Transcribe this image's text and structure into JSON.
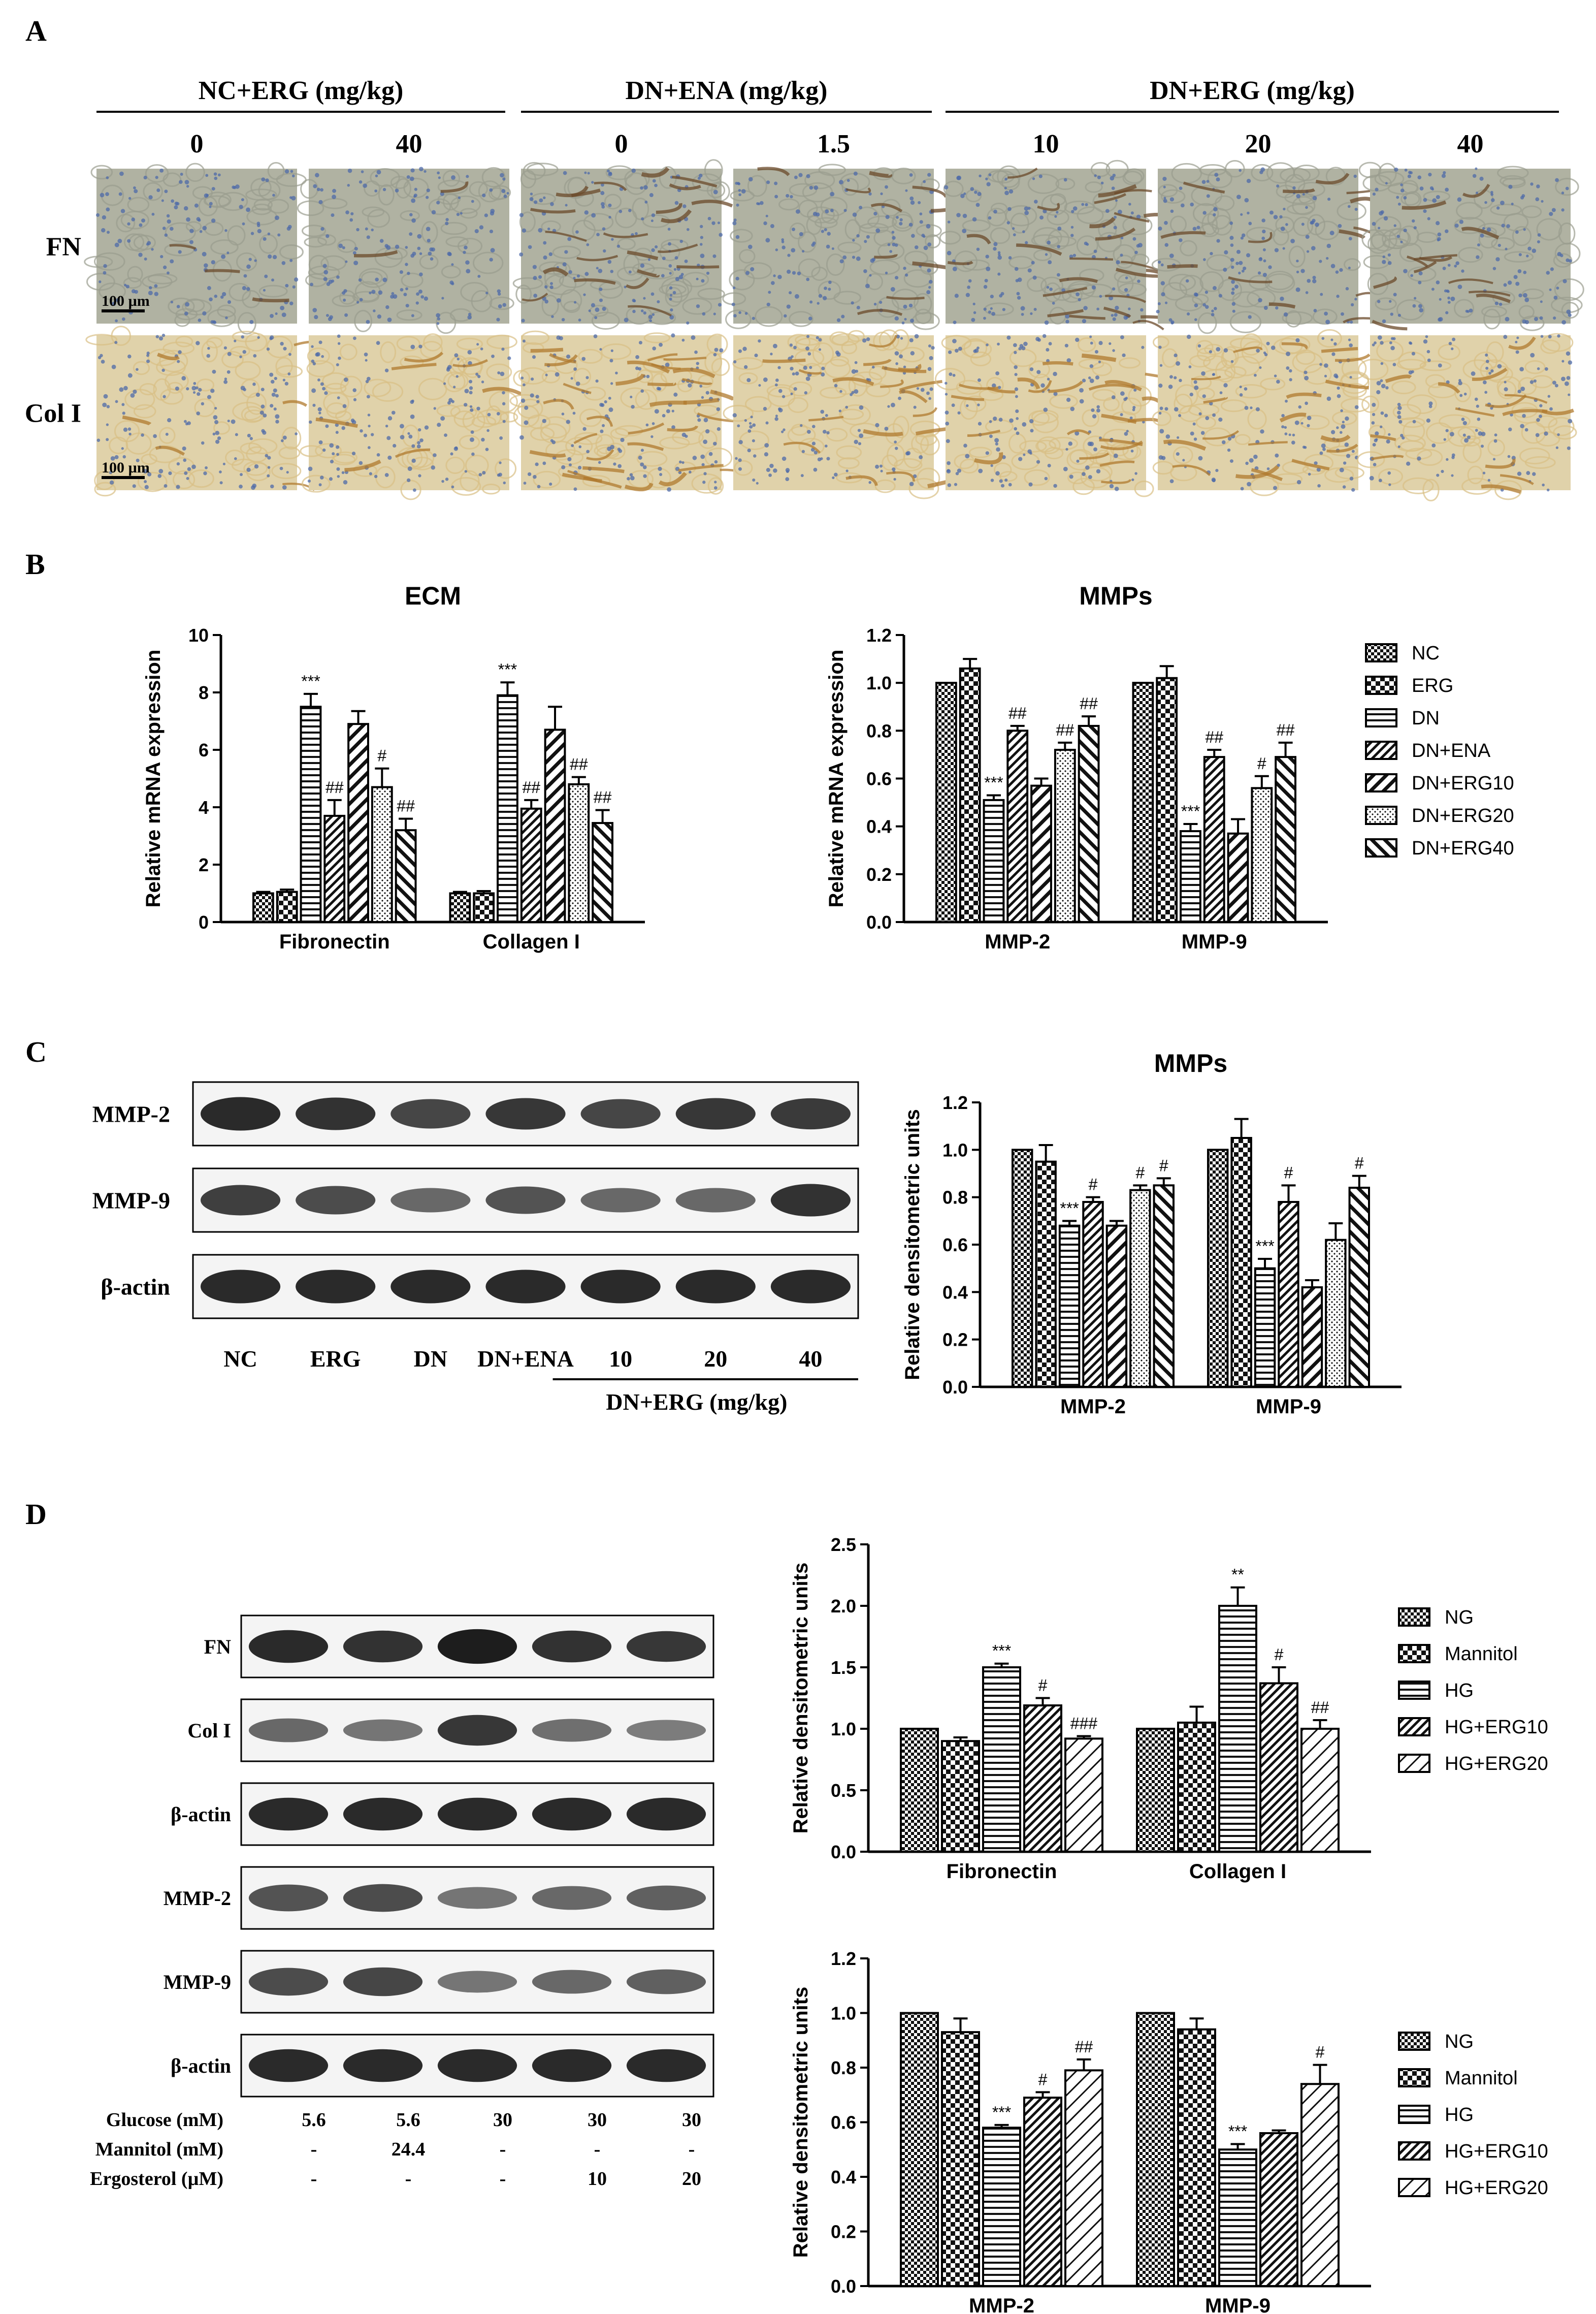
{
  "panels": {
    "A": "A",
    "B": "B",
    "C": "C",
    "D": "D"
  },
  "histology": {
    "groups": [
      {
        "label": "NC+ERG (mg/kg)",
        "doses": [
          "0",
          "40"
        ]
      },
      {
        "label": "DN+ENA (mg/kg)",
        "doses": [
          "0",
          "1.5"
        ]
      },
      {
        "label": "DN+ERG (mg/kg)",
        "doses": [
          "10",
          "20",
          "40"
        ]
      }
    ],
    "rows": [
      "FN",
      "Col I"
    ],
    "scale_bar": "100 µm",
    "stain_intensity": {
      "FN": [
        0.08,
        0.06,
        0.55,
        0.25,
        0.6,
        0.35,
        0.3
      ],
      "Col I": [
        0.15,
        0.18,
        0.8,
        0.45,
        0.55,
        0.45,
        0.35
      ]
    }
  },
  "legends": {
    "in_vivo": [
      "NC",
      "ERG",
      "DN",
      "DN+ENA",
      "DN+ERG10",
      "DN+ERG20",
      "DN+ERG40"
    ],
    "in_vitro": [
      "NG",
      "Mannitol",
      "HG",
      "HG+ERG10",
      "HG+ERG20"
    ]
  },
  "westernC": {
    "bands": [
      "MMP-2",
      "MMP-9",
      "β-actin"
    ],
    "lanes": [
      "NC",
      "ERG",
      "DN",
      "DN+ENA",
      "10",
      "20",
      "40"
    ],
    "group_label": "DN+ERG (mg/kg)",
    "intensity": {
      "MMP-2": [
        0.9,
        0.85,
        0.7,
        0.8,
        0.7,
        0.8,
        0.78
      ],
      "MMP-9": [
        0.75,
        0.65,
        0.45,
        0.6,
        0.45,
        0.45,
        0.85
      ],
      "β-actin": [
        0.9,
        0.9,
        0.9,
        0.9,
        0.9,
        0.9,
        0.9
      ]
    }
  },
  "westernD": {
    "bands": [
      "FN",
      "Col I",
      "β-actin",
      "MMP-2",
      "MMP-9",
      "β-actin"
    ],
    "conditions": [
      {
        "label": "Glucose (mM)",
        "values": [
          "5.6",
          "5.6",
          "30",
          "30",
          "30"
        ]
      },
      {
        "label": "Mannitol (mM)",
        "values": [
          "-",
          "24.4",
          "-",
          "-",
          "-"
        ]
      },
      {
        "label": "Ergosterol (µM)",
        "values": [
          "-",
          "-",
          "-",
          "10",
          "20"
        ]
      }
    ],
    "intensity": [
      [
        0.9,
        0.85,
        1.0,
        0.85,
        0.8
      ],
      [
        0.45,
        0.35,
        0.8,
        0.4,
        0.3
      ],
      [
        0.9,
        0.9,
        0.9,
        0.9,
        0.9
      ],
      [
        0.6,
        0.65,
        0.35,
        0.45,
        0.5
      ],
      [
        0.65,
        0.7,
        0.35,
        0.45,
        0.5
      ],
      [
        0.9,
        0.9,
        0.9,
        0.9,
        0.9
      ]
    ]
  },
  "chart_data": [
    {
      "id": "B-ECM",
      "type": "bar",
      "title": "ECM",
      "xlabel": "",
      "ylabel": "Relative mRNA expression",
      "categories": [
        "Fibronectin",
        "Collagen I"
      ],
      "ylim": [
        0,
        10
      ],
      "yticks": [
        "0",
        "2",
        "4",
        "6",
        "8",
        "10"
      ],
      "values": [
        [
          1.0,
          1.05,
          7.5,
          3.7,
          6.9,
          4.7,
          3.2
        ],
        [
          1.0,
          1.0,
          7.9,
          3.95,
          6.7,
          4.8,
          3.45
        ]
      ],
      "errors": [
        [
          0.05,
          0.08,
          0.45,
          0.55,
          0.45,
          0.65,
          0.4
        ],
        [
          0.05,
          0.08,
          0.45,
          0.3,
          0.8,
          0.25,
          0.45
        ]
      ],
      "annotations": [
        [
          "",
          "",
          "***",
          "##",
          "",
          "#",
          "##"
        ],
        [
          "",
          "",
          "***",
          "##",
          "",
          "##",
          "##"
        ]
      ]
    },
    {
      "id": "B-MMPs",
      "type": "bar",
      "title": "MMPs",
      "xlabel": "",
      "ylabel": "Relative mRNA expression",
      "categories": [
        "MMP-2",
        "MMP-9"
      ],
      "ylim": [
        0,
        1.2
      ],
      "yticks": [
        "0.0",
        "0.2",
        "0.4",
        "0.6",
        "0.8",
        "1.0",
        "1.2"
      ],
      "values": [
        [
          1.0,
          1.06,
          0.51,
          0.8,
          0.57,
          0.72,
          0.82
        ],
        [
          1.0,
          1.02,
          0.38,
          0.69,
          0.37,
          0.56,
          0.69
        ]
      ],
      "errors": [
        [
          0.0,
          0.04,
          0.02,
          0.02,
          0.03,
          0.03,
          0.04
        ],
        [
          0.0,
          0.05,
          0.03,
          0.03,
          0.06,
          0.05,
          0.06
        ]
      ],
      "annotations": [
        [
          "",
          "",
          "***",
          "##",
          "",
          "##",
          "##"
        ],
        [
          "",
          "",
          "***",
          "##",
          "",
          "#",
          "##"
        ]
      ]
    },
    {
      "id": "C-MMPs",
      "type": "bar",
      "title": "MMPs",
      "xlabel": "",
      "ylabel": "Relative densitometric units",
      "categories": [
        "MMP-2",
        "MMP-9"
      ],
      "ylim": [
        0,
        1.2
      ],
      "yticks": [
        "0.0",
        "0.2",
        "0.4",
        "0.6",
        "0.8",
        "1.0",
        "1.2"
      ],
      "values": [
        [
          1.0,
          0.95,
          0.68,
          0.78,
          0.68,
          0.83,
          0.85
        ],
        [
          1.0,
          1.05,
          0.5,
          0.78,
          0.42,
          0.62,
          0.84
        ]
      ],
      "errors": [
        [
          0.0,
          0.07,
          0.02,
          0.02,
          0.02,
          0.02,
          0.03
        ],
        [
          0.0,
          0.08,
          0.04,
          0.07,
          0.03,
          0.07,
          0.05
        ]
      ],
      "annotations": [
        [
          "",
          "",
          "***",
          "#",
          "",
          "#",
          "#"
        ],
        [
          "",
          "",
          "***",
          "#",
          "",
          "",
          "#"
        ]
      ]
    },
    {
      "id": "D-ECM",
      "type": "bar",
      "title": "",
      "xlabel": "",
      "ylabel": "Relative densitometric units",
      "categories": [
        "Fibronectin",
        "Collagen I"
      ],
      "ylim": [
        0,
        2.5
      ],
      "yticks": [
        "0.0",
        "0.5",
        "1.0",
        "1.5",
        "2.0",
        "2.5"
      ],
      "values": [
        [
          1.0,
          0.9,
          1.5,
          1.19,
          0.92
        ],
        [
          1.0,
          1.05,
          2.0,
          1.37,
          1.0
        ]
      ],
      "errors": [
        [
          0.0,
          0.03,
          0.03,
          0.06,
          0.02
        ],
        [
          0.0,
          0.13,
          0.15,
          0.13,
          0.07
        ]
      ],
      "annotations": [
        [
          "",
          "",
          "***",
          "#",
          "###"
        ],
        [
          "",
          "",
          "**",
          "#",
          "##"
        ]
      ]
    },
    {
      "id": "D-MMPs",
      "type": "bar",
      "title": "",
      "xlabel": "",
      "ylabel": "Relative densitometric units",
      "categories": [
        "MMP-2",
        "MMP-9"
      ],
      "ylim": [
        0,
        1.2
      ],
      "yticks": [
        "0.0",
        "0.2",
        "0.4",
        "0.6",
        "0.8",
        "1.0",
        "1.2"
      ],
      "values": [
        [
          1.0,
          0.93,
          0.58,
          0.69,
          0.79
        ],
        [
          1.0,
          0.94,
          0.5,
          0.56,
          0.74
        ]
      ],
      "errors": [
        [
          0.0,
          0.05,
          0.01,
          0.02,
          0.04
        ],
        [
          0.0,
          0.04,
          0.02,
          0.01,
          0.07
        ]
      ],
      "annotations": [
        [
          "",
          "",
          "***",
          "#",
          "##"
        ],
        [
          "",
          "",
          "***",
          "",
          "#"
        ]
      ]
    }
  ]
}
